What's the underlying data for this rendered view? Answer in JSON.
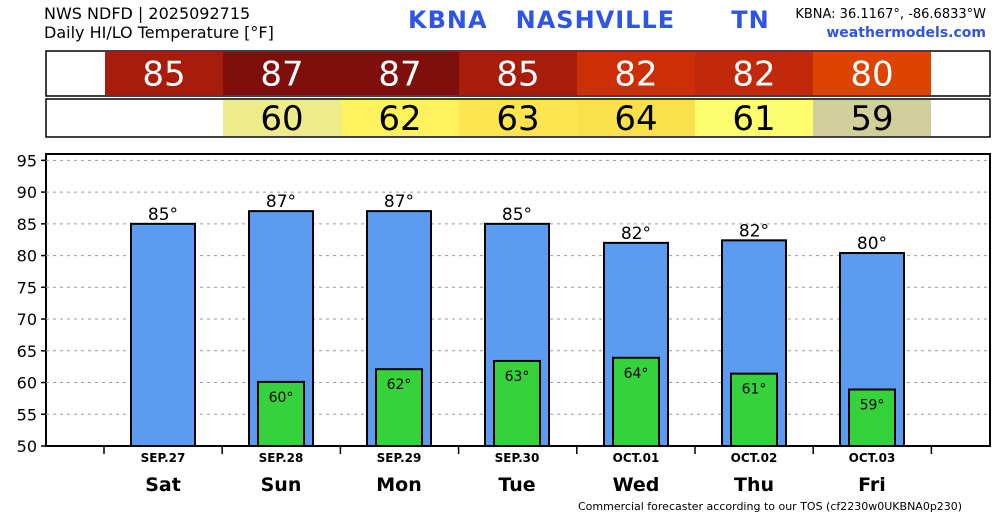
{
  "header": {
    "line1": "NWS NDFD | 2025092715",
    "line2": "Daily HI/LO Temperature [°F]",
    "station": "KBNA   NASHVILLE      TN",
    "coords": "KBNA: 36.1167°, -86.6833°W",
    "site": "weathermodels.com"
  },
  "footer": "Commercial forecaster according to our TOS (cf2230w0UKBNA0p230)",
  "colors": {
    "hi_bar": "#5b9cf0",
    "lo_bar": "#35d23b"
  },
  "hi_strip": [
    {
      "day": "Sat",
      "text": "85",
      "color": "#a81c0c"
    },
    {
      "day": "Sun",
      "text": "87",
      "color": "#7e0f0c"
    },
    {
      "day": "Mon",
      "text": "87",
      "color": "#7e0f0c"
    },
    {
      "day": "Tue",
      "text": "85",
      "color": "#a81c0c"
    },
    {
      "day": "Wed",
      "text": "82",
      "color": "#cc2f06"
    },
    {
      "day": "Thu",
      "text": "82",
      "color": "#c2290a"
    },
    {
      "day": "Fri",
      "text": "80",
      "color": "#dd4400"
    }
  ],
  "lo_strip": [
    {
      "day": "Sat",
      "text": "",
      "color": "#ffffff"
    },
    {
      "day": "Sun",
      "text": "60",
      "color": "#eeeb8a"
    },
    {
      "day": "Mon",
      "text": "62",
      "color": "#fff25c"
    },
    {
      "day": "Tue",
      "text": "63",
      "color": "#fde550"
    },
    {
      "day": "Wed",
      "text": "64",
      "color": "#fbe04e"
    },
    {
      "day": "Thu",
      "text": "61",
      "color": "#fdfd6e"
    },
    {
      "day": "Fri",
      "text": "59",
      "color": "#d2d09a"
    }
  ],
  "chart_data": {
    "type": "bar",
    "categories": [
      "Sat",
      "Sun",
      "Mon",
      "Tue",
      "Wed",
      "Thu",
      "Fri"
    ],
    "dates": [
      "SEP.27",
      "SEP.28",
      "SEP.29",
      "SEP.30",
      "OCT.01",
      "OCT.02",
      "OCT.03"
    ],
    "series": [
      {
        "values": [
          85,
          87,
          87,
          85,
          82,
          82.4,
          80.4
        ],
        "labels": [
          "85°",
          "87°",
          "87°",
          "85°",
          "82°",
          "82°",
          "80°"
        ]
      },
      {
        "values": [
          null,
          60.1,
          62.1,
          63.4,
          63.9,
          61.4,
          58.9
        ],
        "labels": [
          "",
          "60°",
          "62°",
          "63°",
          "64°",
          "61°",
          "59°"
        ]
      }
    ],
    "ylim": [
      50,
      96
    ],
    "yticks": [
      50,
      55,
      60,
      65,
      70,
      75,
      80,
      85,
      90,
      95
    ],
    "grid": true,
    "xlabel": "",
    "ylabel": ""
  }
}
